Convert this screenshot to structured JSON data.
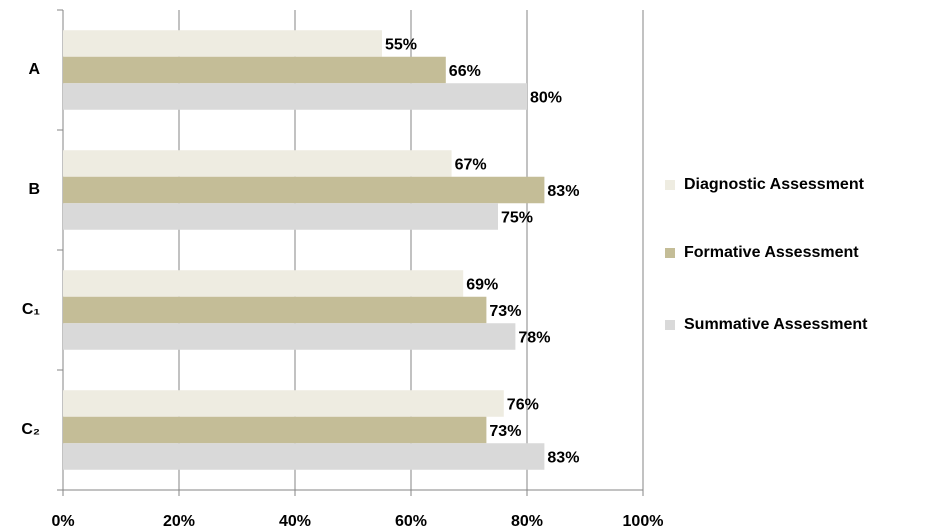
{
  "chart_data": {
    "type": "bar",
    "orientation": "horizontal",
    "categories": [
      "A",
      "B",
      "C₁",
      "C₂"
    ],
    "series": [
      {
        "name": "Diagnostic Assessment",
        "color": "#eeece1",
        "values": [
          55,
          67,
          69,
          76
        ],
        "value_labels": [
          "55%",
          "67%",
          "69%",
          "76%"
        ]
      },
      {
        "name": "Formative Assessment",
        "color": "#c4bd97",
        "values": [
          66,
          83,
          73,
          73
        ],
        "value_labels": [
          "66%",
          "83%",
          "73%",
          "73%"
        ]
      },
      {
        "name": "Summative Assessment",
        "color": "#d9d9d9",
        "values": [
          80,
          75,
          78,
          83
        ],
        "value_labels": [
          "80%",
          "75%",
          "78%",
          "83%"
        ]
      }
    ],
    "xlim": [
      0,
      100
    ],
    "xticks": [
      {
        "value": 0,
        "label": "0%"
      },
      {
        "value": 20,
        "label": "20%"
      },
      {
        "value": 40,
        "label": "40%"
      },
      {
        "value": 60,
        "label": "60%"
      },
      {
        "value": 80,
        "label": "80%"
      },
      {
        "value": 100,
        "label": "100%"
      }
    ],
    "grid": true,
    "legend": "right"
  }
}
